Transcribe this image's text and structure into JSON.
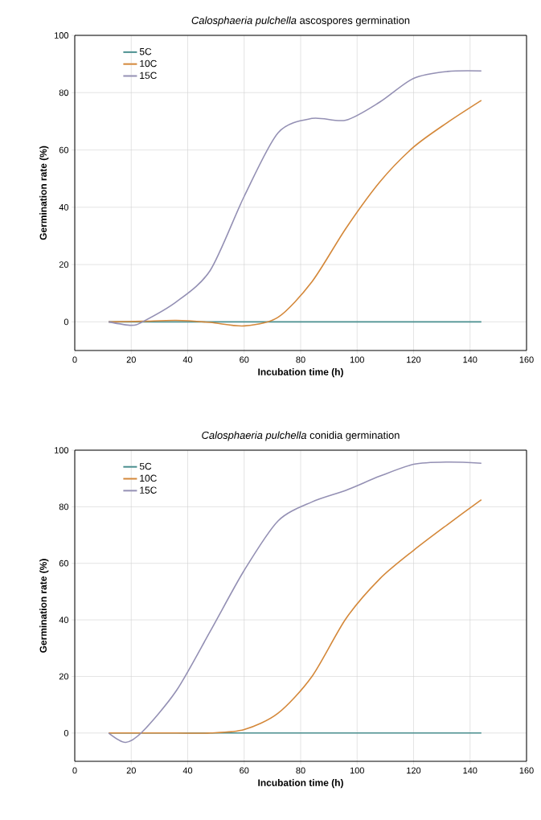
{
  "chart_data": [
    {
      "type": "line",
      "title": "*Calosphaeria pulchella* ascospores germination",
      "xlabel": "Incubation time (h)",
      "ylabel": "Germination rate (%)",
      "x": [
        12,
        24,
        36,
        48,
        60,
        72,
        84,
        96,
        108,
        120,
        132,
        144
      ],
      "series": [
        {
          "name": "5C",
          "color": "#4a8f8f",
          "values": [
            0,
            0,
            0,
            0,
            0,
            0,
            0,
            0,
            0,
            0,
            0,
            0
          ]
        },
        {
          "name": "10C",
          "color": "#d4883a",
          "values": [
            0,
            0.2,
            0.5,
            -0.2,
            -1.4,
            1.6,
            14,
            32.6,
            48.8,
            61,
            69.6,
            77.3
          ]
        },
        {
          "name": "15C",
          "color": "#9490b4",
          "x": [
            12,
            20,
            24,
            36,
            48,
            60,
            72,
            84,
            96,
            108,
            120,
            132,
            144
          ],
          "values": [
            0,
            -1.2,
            0,
            7,
            18,
            43.8,
            66,
            71,
            70.4,
            76.7,
            85,
            87.4,
            87.6
          ]
        }
      ],
      "xlim": [
        0,
        160
      ],
      "xticks": [
        0,
        20,
        40,
        60,
        80,
        100,
        120,
        140,
        160
      ],
      "ylim": [
        -10,
        100
      ],
      "yticks": [
        0,
        20,
        40,
        60,
        80,
        100
      ],
      "grid": true,
      "legend": "top left"
    },
    {
      "type": "line",
      "title": "*Calosphaeria pulchella* conidia germination",
      "xlabel": "Incubation time (h)",
      "ylabel": "Germination rate (%)",
      "x": [
        12,
        24,
        36,
        48,
        60,
        72,
        84,
        96,
        108,
        120,
        132,
        144
      ],
      "series": [
        {
          "name": "5C",
          "color": "#4a8f8f",
          "values": [
            0,
            0,
            0,
            0,
            0,
            0,
            0,
            0,
            0,
            0,
            0,
            0
          ]
        },
        {
          "name": "10C",
          "color": "#d4883a",
          "values": [
            0,
            0,
            0,
            0,
            1.2,
            7,
            20,
            40.4,
            54.5,
            64.6,
            73.7,
            82.5
          ]
        },
        {
          "name": "15C",
          "color": "#9490b4",
          "x": [
            12,
            18,
            24,
            36,
            48,
            60,
            72,
            84,
            96,
            108,
            120,
            132,
            144
          ],
          "values": [
            0,
            -3.3,
            0.5,
            15,
            36,
            57.5,
            75,
            81.7,
            85.8,
            90.8,
            95,
            95.8,
            95.4
          ]
        }
      ],
      "xlim": [
        0,
        160
      ],
      "xticks": [
        0,
        20,
        40,
        60,
        80,
        100,
        120,
        140,
        160
      ],
      "ylim": [
        -10,
        100
      ],
      "yticks": [
        0,
        20,
        40,
        60,
        80,
        100
      ],
      "grid": true,
      "legend": "top left"
    }
  ]
}
